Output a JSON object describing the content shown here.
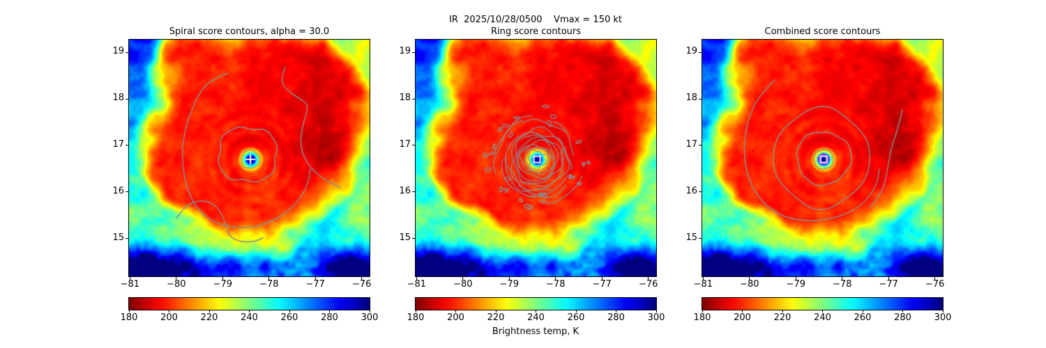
{
  "figure": {
    "suptitle": "IR  2025/10/28/0500    Vmax = 150 kt",
    "background_color": "#ffffff"
  },
  "chart_data": {
    "type": "heatmap",
    "description": "Three panels showing the same hurricane infrared brightness-temperature image (jet-reversed colormap) with different gray score-contour overlays and a white marker at the storm center.",
    "colormap": "jet_reversed",
    "value_range": [
      180,
      300
    ],
    "panels": [
      {
        "id": "spiral",
        "title": "Spiral score contours, alpha = 30.0",
        "contour_style": "spiral arms, ellipse and inner circle",
        "center_marker": "plus"
      },
      {
        "id": "ring",
        "title": "Ring score contours",
        "contour_style": "dense noisy concentric rings with scattered blobs",
        "center_marker": "open-square"
      },
      {
        "id": "combined",
        "title": "Combined score contours",
        "contour_style": "nested smooth closed contours plus outer spiral arm",
        "center_marker": "open-square"
      }
    ],
    "axes": {
      "xlim": [
        -81.02,
        -75.83
      ],
      "ylim": [
        14.19,
        19.27
      ],
      "xtick_values": [
        -81,
        -80,
        -79,
        -78,
        -77,
        -76
      ],
      "xtick_labels": [
        "−81",
        "−80",
        "−79",
        "−78",
        "−77",
        "−76"
      ],
      "ytick_values": [
        19,
        18,
        17,
        16,
        15
      ],
      "ytick_labels": [
        "19",
        "18",
        "17",
        "16",
        "15"
      ]
    },
    "storm_center": {
      "lon": -78.4,
      "lat": 16.7
    },
    "colorbar": {
      "tick_values": [
        180,
        200,
        220,
        240,
        260,
        280,
        300
      ],
      "tick_labels": [
        "180",
        "200",
        "220",
        "240",
        "260",
        "280",
        "300"
      ],
      "label": "Brightness temp, K"
    },
    "colors": {
      "contour_gray": "#8c8c8c",
      "marker_white": "#ffffff",
      "eye_marker_violet": "#7d2ae8",
      "axis_black": "#000000"
    }
  }
}
